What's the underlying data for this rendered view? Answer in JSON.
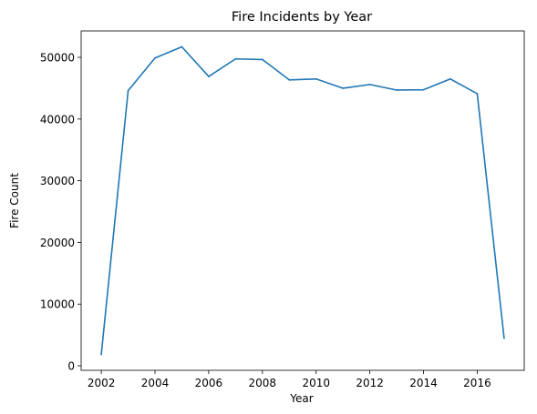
{
  "chart_data": {
    "type": "line",
    "title": "Fire Incidents by Year",
    "xlabel": "Year",
    "ylabel": "Fire Count",
    "x": [
      2002,
      2003,
      2004,
      2005,
      2006,
      2007,
      2008,
      2009,
      2010,
      2011,
      2012,
      2013,
      2014,
      2015,
      2016,
      2017
    ],
    "series": [
      {
        "values": [
          1850,
          44600,
          49900,
          51700,
          46900,
          49750,
          49650,
          46350,
          46500,
          45000,
          45600,
          44700,
          44750,
          46500,
          44100,
          4500
        ],
        "color": "#1f77b4"
      }
    ],
    "xlim": [
      2001.25,
      2017.75
    ],
    "ylim": [
      -735,
      54285
    ],
    "xticks": [
      2002,
      2004,
      2006,
      2008,
      2010,
      2012,
      2014,
      2016
    ],
    "yticks": [
      0,
      10000,
      20000,
      30000,
      40000,
      50000
    ],
    "grid": false,
    "legend": "none"
  }
}
